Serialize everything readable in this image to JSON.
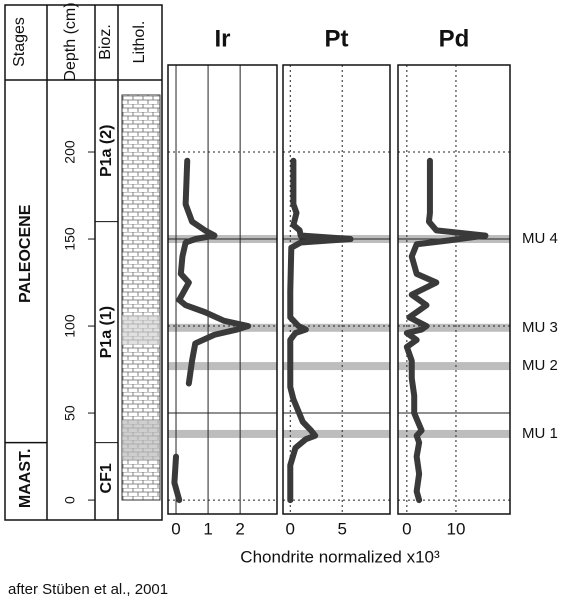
{
  "columns": [
    "Stages",
    "Depth (cm)",
    "Bioz.",
    "Lithol."
  ],
  "depth_axis": {
    "ylim": [
      -8,
      250
    ],
    "yticks": [
      0,
      50,
      100,
      150,
      200
    ]
  },
  "stages": [
    {
      "name": "PALEOCENE",
      "top": 250,
      "bottom": 33
    },
    {
      "name": "MAAST.",
      "top": 33,
      "bottom": -8
    }
  ],
  "biozones": [
    {
      "name": "P1a (2)",
      "top": 250,
      "bottom": 160
    },
    {
      "name": "P1a (1)",
      "top": 160,
      "bottom": 33
    },
    {
      "name": "CF1",
      "top": 33,
      "bottom": -8
    }
  ],
  "markers": [
    {
      "label": "MU 4",
      "depth": 150
    },
    {
      "label": "MU 3",
      "depth": 99
    },
    {
      "label": "MU 2",
      "depth": 77
    },
    {
      "label": "MU 1",
      "depth": 38
    }
  ],
  "x_label": "Chondrite normalized x10³",
  "caption": "after Stüben et al., 2001",
  "chart_data": [
    {
      "type": "line",
      "title": "Ir",
      "color": "#3a3a3a",
      "xlim": [
        -0.25,
        3.15
      ],
      "xticks": [
        0,
        1,
        2
      ],
      "y": [
        195,
        170,
        160,
        155,
        152,
        150,
        148,
        140,
        130,
        125,
        115,
        112,
        108,
        103,
        100,
        98,
        95,
        90,
        80,
        67,
        null,
        25,
        10,
        0
      ],
      "values": [
        0.35,
        0.3,
        0.5,
        0.9,
        1.2,
        0.6,
        0.3,
        0.2,
        0.15,
        0.4,
        0.1,
        0.3,
        0.9,
        1.5,
        2.25,
        1.9,
        1.2,
        0.6,
        0.5,
        0.4,
        null,
        0,
        -0.05,
        0.1
      ]
    },
    {
      "type": "line",
      "title": "Pt",
      "color": "#3a3a3a",
      "xlim": [
        -0.7,
        9.6
      ],
      "xticks": [
        0,
        5
      ],
      "y": [
        195,
        170,
        165,
        158,
        155,
        152,
        150,
        148,
        145,
        120,
        105,
        100,
        98,
        96,
        92,
        75,
        65,
        58,
        45,
        40,
        37,
        35,
        30,
        20,
        0
      ],
      "values": [
        0.3,
        0.3,
        0.6,
        0.3,
        0.9,
        1,
        5.8,
        1,
        0.1,
        0,
        0,
        0.8,
        1.5,
        0.5,
        0,
        0,
        0,
        0.3,
        1.2,
        2,
        2.4,
        1.5,
        0.5,
        0,
        0
      ]
    },
    {
      "type": "line",
      "title": "Pd",
      "color": "#3a3a3a",
      "xlim": [
        -1.8,
        21
      ],
      "xticks": [
        0,
        10
      ],
      "y": [
        195,
        165,
        160,
        155,
        152,
        149,
        147,
        140,
        130,
        125,
        118,
        112,
        105,
        100,
        98,
        96,
        92,
        88,
        80,
        70,
        60,
        50,
        40,
        37,
        33,
        25,
        15,
        5,
        0
      ],
      "values": [
        4.7,
        4.7,
        4.5,
        6,
        16,
        8,
        2,
        1,
        2,
        6,
        1,
        4,
        0.5,
        4,
        3,
        0,
        2,
        0,
        1,
        1,
        1.5,
        1.5,
        3,
        2,
        2.5,
        2,
        2.5,
        2,
        2.5
      ]
    }
  ]
}
